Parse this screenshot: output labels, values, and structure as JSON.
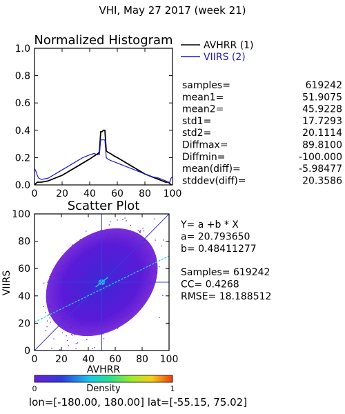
{
  "header": {
    "title": "VHI,  May 27 2017 (week 21)"
  },
  "histogram": {
    "title": "Normalized Histogram",
    "legend": [
      {
        "label": "AVHRR (1)",
        "color": "#000000"
      },
      {
        "label": "VIIRS (2)",
        "color": "#1a1acc"
      }
    ],
    "stats": [
      {
        "label": "samples=",
        "value": "619242"
      },
      {
        "label": "mean1=",
        "value": "51.9075"
      },
      {
        "label": "mean2=",
        "value": "45.9228"
      },
      {
        "label": "std1=",
        "value": "17.7293"
      },
      {
        "label": "std2=",
        "value": "20.1114"
      },
      {
        "label": "Diffmax=",
        "value": "89.8100"
      },
      {
        "label": "Diffmin=",
        "value": "-100.000"
      },
      {
        "label": "mean(diff)=",
        "value": "-5.98477"
      },
      {
        "label": "stddev(diff)=",
        "value": "20.3586"
      }
    ]
  },
  "scatter": {
    "title": "Scatter Plot",
    "xlabel": "AVHRR",
    "ylabel": "VIIRS",
    "regression_lines": [
      "Y= a +b * X",
      "a= 20.793650",
      "b= 0.48411277"
    ],
    "fit_lines": [
      "Samples= 619242",
      "CC=  0.4268",
      "RMSE= 18.188512"
    ]
  },
  "colorbar": {
    "label": "Density",
    "min_label": "0",
    "max_label": "1"
  },
  "footer": {
    "text": "lon=[-180.00, 180.00] lat=[-55.15, 75.02]"
  },
  "chart_data": [
    {
      "type": "line",
      "title": "Normalized Histogram",
      "xlabel": "",
      "ylabel": "",
      "xlim": [
        0,
        100
      ],
      "ylim": [
        0,
        1.0
      ],
      "x_ticks": [
        0,
        20,
        40,
        60,
        80,
        100
      ],
      "y_ticks": [
        "0.0",
        "0.2",
        "0.4",
        "0.6",
        "0.8",
        "1.0"
      ],
      "legend_position": "outside-right",
      "series": [
        {
          "name": "AVHRR (1)",
          "color": "#000000",
          "x": [
            0,
            1,
            2,
            5,
            10,
            15,
            20,
            25,
            30,
            35,
            40,
            43,
            46,
            47,
            48,
            49,
            50,
            51,
            52,
            53,
            55,
            58,
            60,
            65,
            70,
            75,
            80,
            85,
            90,
            95,
            97,
            98,
            99,
            100
          ],
          "y": [
            0.0,
            0.01,
            0.02,
            0.02,
            0.03,
            0.05,
            0.07,
            0.1,
            0.13,
            0.16,
            0.19,
            0.21,
            0.23,
            0.24,
            0.39,
            0.39,
            0.4,
            0.4,
            0.25,
            0.24,
            0.23,
            0.21,
            0.2,
            0.17,
            0.14,
            0.11,
            0.08,
            0.06,
            0.04,
            0.02,
            0.02,
            0.01,
            0.0,
            0.0
          ]
        },
        {
          "name": "VIIRS (2)",
          "color": "#1a1acc",
          "x": [
            0,
            1,
            2,
            3,
            5,
            10,
            15,
            20,
            25,
            30,
            35,
            40,
            43,
            46,
            47,
            48,
            49,
            50,
            51,
            52,
            53,
            55,
            60,
            65,
            70,
            75,
            80,
            85,
            90,
            95,
            97,
            98,
            99,
            100
          ],
          "y": [
            0.12,
            0.1,
            0.07,
            0.05,
            0.04,
            0.05,
            0.08,
            0.11,
            0.14,
            0.17,
            0.2,
            0.22,
            0.23,
            0.22,
            0.22,
            0.33,
            0.33,
            0.33,
            0.33,
            0.2,
            0.19,
            0.18,
            0.16,
            0.14,
            0.12,
            0.1,
            0.08,
            0.06,
            0.05,
            0.03,
            0.02,
            0.02,
            0.05,
            0.06
          ]
        }
      ]
    },
    {
      "type": "scatter",
      "title": "Scatter Plot",
      "xlabel": "AVHRR",
      "ylabel": "VIIRS",
      "xlim": [
        0,
        100
      ],
      "ylim": [
        0,
        100
      ],
      "x_ticks": [
        0,
        20,
        40,
        60,
        80,
        100
      ],
      "y_ticks": [
        0,
        20,
        40,
        60,
        80,
        100
      ],
      "point_color": "#5a1ad8",
      "center_color": "#18d2e6",
      "density_cloud": {
        "center": [
          50,
          50
        ],
        "spread": [
          18,
          20
        ],
        "correlation": 0.43,
        "samples": 619242
      },
      "regression": {
        "a": 20.79365,
        "b": 0.48411277
      },
      "reference_lines": [
        "x = 50",
        "y = 50",
        "y = x"
      ]
    }
  ]
}
